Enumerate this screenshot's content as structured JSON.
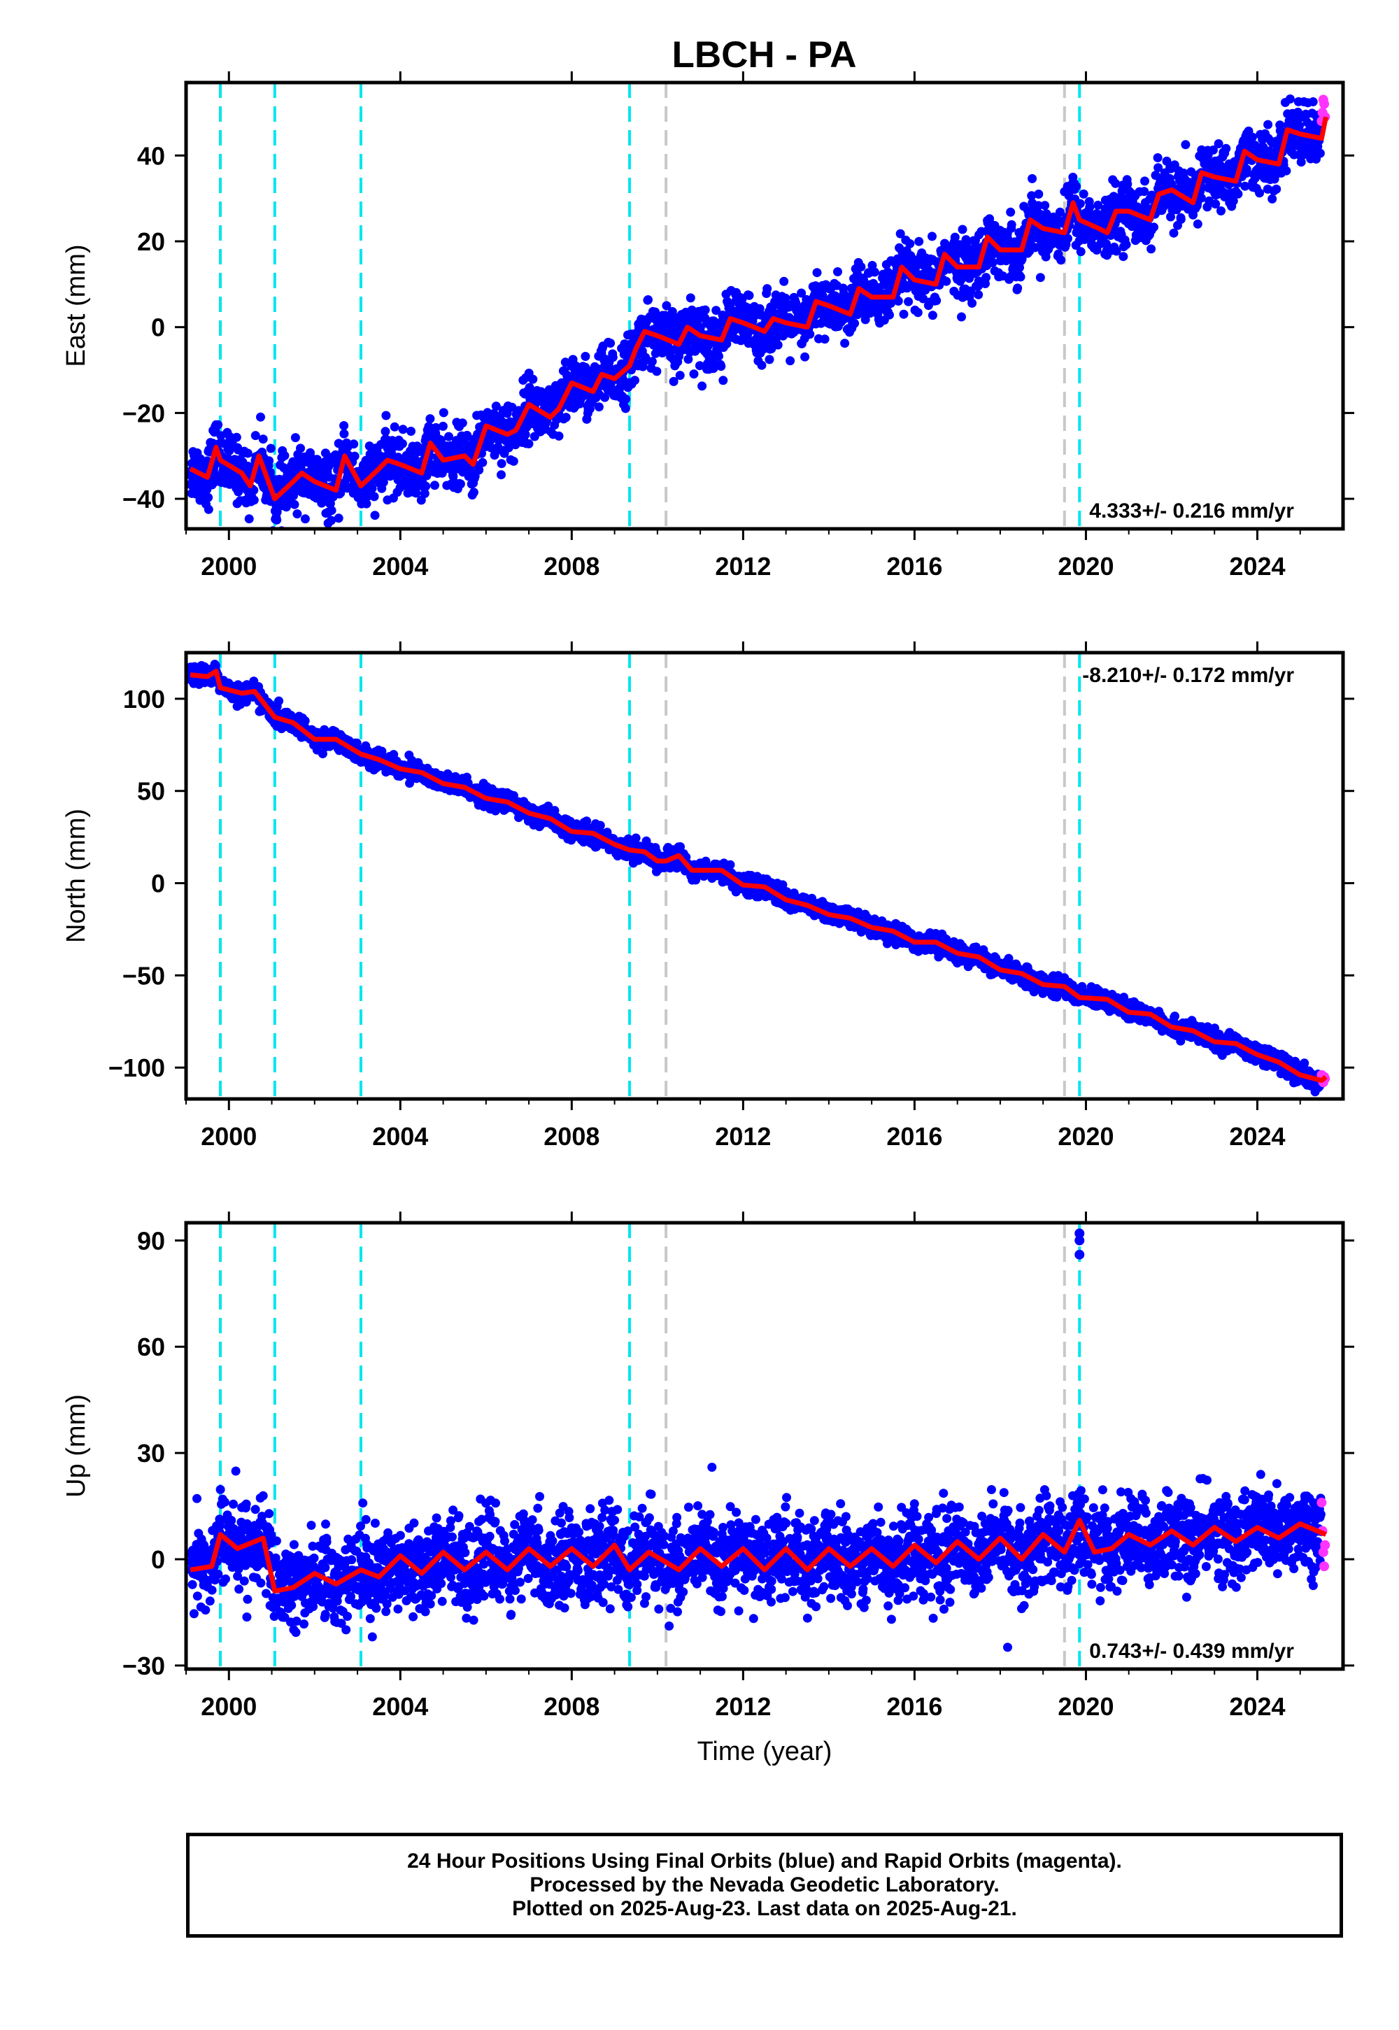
{
  "title": "LBCH - PA",
  "colors": {
    "final_orbits": "#0000ff",
    "rapid_orbits": "#ff33ff",
    "model": "#ff0000",
    "offset_cyan": "#00e5ee",
    "offset_gray": "#c8c8c8"
  },
  "footer": {
    "line1": "24 Hour Positions Using Final Orbits (blue) and Rapid Orbits (magenta).",
    "line2": "Processed by the Nevada Geodetic Laboratory.",
    "line3": "Plotted on 2025-Aug-23. Last data on 2025-Aug-21."
  },
  "chart_data": [
    {
      "type": "scatter",
      "name": "east",
      "xlabel": "",
      "ylabel": "East (mm)",
      "xlim": [
        1999.0,
        2026.0
      ],
      "ylim": [
        -47,
        57
      ],
      "xticks": [
        2000,
        2004,
        2008,
        2012,
        2016,
        2020,
        2024
      ],
      "yticks": [
        -40,
        -20,
        0,
        20,
        40
      ],
      "rate_text": "4.333+/- 0.216 mm/yr",
      "rate_position": "bottom-right",
      "offsets_cyan": [
        1999.8,
        2001.07,
        2003.08,
        2009.35
      ],
      "offsets_gray": [
        2010.2,
        2019.5
      ],
      "offsets_cyan_late": [
        2019.85
      ],
      "model_x": [
        1999.1,
        1999.5,
        1999.7,
        1999.8,
        2000.3,
        2000.5,
        2000.7,
        2001.07,
        2001.5,
        2001.7,
        2002.0,
        2002.5,
        2002.7,
        2003.08,
        2003.5,
        2003.7,
        2004.0,
        2004.5,
        2004.7,
        2005.0,
        2005.5,
        2005.7,
        2006.0,
        2006.5,
        2006.7,
        2007.0,
        2007.5,
        2007.7,
        2008.0,
        2008.5,
        2008.7,
        2009.0,
        2009.35,
        2009.5,
        2009.7,
        2010.0,
        2010.5,
        2010.7,
        2011.0,
        2011.5,
        2011.7,
        2012.0,
        2012.5,
        2012.7,
        2013.0,
        2013.5,
        2013.7,
        2014.0,
        2014.5,
        2014.7,
        2015.0,
        2015.5,
        2015.7,
        2016.0,
        2016.5,
        2016.7,
        2017.0,
        2017.5,
        2017.7,
        2018.0,
        2018.5,
        2018.7,
        2019.0,
        2019.5,
        2019.7,
        2019.85,
        2020.3,
        2020.5,
        2020.7,
        2021.0,
        2021.5,
        2021.7,
        2022.0,
        2022.5,
        2022.7,
        2023.0,
        2023.5,
        2023.7,
        2024.0,
        2024.5,
        2024.7,
        2025.0,
        2025.5,
        2025.6
      ],
      "model_y": [
        -33,
        -35,
        -28,
        -31,
        -34,
        -37,
        -30,
        -40,
        -36,
        -34,
        -36,
        -38,
        -30,
        -37,
        -33,
        -31,
        -32,
        -34,
        -27,
        -31,
        -30,
        -32,
        -23,
        -25,
        -24,
        -18,
        -21,
        -19,
        -13,
        -15,
        -11,
        -12,
        -9,
        -5,
        -1,
        -2,
        -4,
        0,
        -2,
        -3,
        2,
        1,
        -1,
        2,
        1,
        0,
        6,
        5,
        3,
        9,
        7,
        7,
        14,
        11,
        10,
        17,
        14,
        14,
        21,
        18,
        18,
        25,
        23,
        22,
        29,
        25,
        23,
        22,
        27,
        27,
        25,
        31,
        32,
        29,
        36,
        35,
        34,
        41,
        39,
        38,
        46,
        45,
        44,
        49
      ],
      "scatter_noise": 3.5,
      "rapid_y": [
        48,
        50,
        53,
        52,
        49
      ]
    },
    {
      "type": "scatter",
      "name": "north",
      "xlabel": "",
      "ylabel": "North (mm)",
      "xlim": [
        1999.0,
        2026.0
      ],
      "ylim": [
        -117,
        125
      ],
      "xticks": [
        2000,
        2004,
        2008,
        2012,
        2016,
        2020,
        2024
      ],
      "yticks": [
        -100,
        -50,
        0,
        50,
        100
      ],
      "rate_text": "-8.210+/- 0.172 mm/yr",
      "rate_position": "top-right",
      "offsets_cyan": [
        1999.8,
        2001.07,
        2003.08,
        2009.35
      ],
      "offsets_gray": [
        2010.2,
        2019.5
      ],
      "offsets_cyan_late": [
        2019.85
      ],
      "model_x": [
        1999.1,
        1999.5,
        1999.7,
        1999.8,
        2000.3,
        2000.6,
        2001.07,
        2001.5,
        2002.0,
        2002.5,
        2003.08,
        2003.5,
        2004.0,
        2004.5,
        2005.0,
        2005.5,
        2006.0,
        2006.5,
        2007.0,
        2007.5,
        2008.0,
        2008.5,
        2009.0,
        2009.35,
        2009.7,
        2010.0,
        2010.2,
        2010.5,
        2010.8,
        2011.5,
        2012.0,
        2012.5,
        2013.0,
        2013.5,
        2014.0,
        2014.5,
        2015.0,
        2015.5,
        2016.0,
        2016.5,
        2017.0,
        2017.5,
        2018.0,
        2018.5,
        2019.0,
        2019.5,
        2019.85,
        2020.5,
        2021.0,
        2021.5,
        2022.0,
        2022.5,
        2023.0,
        2023.5,
        2024.0,
        2024.5,
        2025.0,
        2025.5,
        2025.6
      ],
      "model_y": [
        113,
        112,
        115,
        106,
        103,
        104,
        90,
        87,
        78,
        78,
        70,
        67,
        62,
        60,
        54,
        52,
        46,
        44,
        38,
        35,
        28,
        27,
        21,
        18,
        17,
        12,
        12,
        15,
        7,
        7,
        -1,
        -2,
        -9,
        -12,
        -17,
        -19,
        -24,
        -26,
        -32,
        -32,
        -38,
        -40,
        -47,
        -49,
        -55,
        -56,
        -62,
        -63,
        -70,
        -71,
        -78,
        -80,
        -86,
        -87,
        -93,
        -97,
        -104,
        -107,
        -105
      ],
      "scatter_noise": 2.5,
      "rapid_y": [
        -104,
        -107,
        -108,
        -105,
        -106
      ]
    },
    {
      "type": "scatter",
      "name": "up",
      "xlabel": "Time (year)",
      "ylabel": "Up (mm)",
      "xlim": [
        1999.0,
        2026.0
      ],
      "ylim": [
        -31,
        95
      ],
      "xticks": [
        2000,
        2004,
        2008,
        2012,
        2016,
        2020,
        2024
      ],
      "yticks": [
        -30,
        0,
        30,
        60,
        90
      ],
      "rate_text": "0.743+/- 0.439 mm/yr",
      "rate_position": "bottom-right",
      "offsets_cyan": [
        1999.8,
        2001.07,
        2003.08,
        2009.35
      ],
      "offsets_gray": [
        2010.2,
        2019.5
      ],
      "offsets_cyan_late": [
        2019.85
      ],
      "model_x": [
        1999.1,
        1999.6,
        1999.8,
        2000.2,
        2000.8,
        2001.07,
        2001.5,
        2002.0,
        2002.5,
        2003.08,
        2003.5,
        2004.0,
        2004.5,
        2005.0,
        2005.5,
        2006.0,
        2006.5,
        2007.0,
        2007.5,
        2008.0,
        2008.5,
        2009.0,
        2009.35,
        2009.8,
        2010.5,
        2011.0,
        2011.5,
        2012.0,
        2012.5,
        2013.0,
        2013.5,
        2014.0,
        2014.5,
        2015.0,
        2015.5,
        2016.0,
        2016.5,
        2017.0,
        2017.5,
        2018.0,
        2018.5,
        2019.0,
        2019.5,
        2019.85,
        2020.2,
        2020.6,
        2021.0,
        2021.5,
        2022.0,
        2022.5,
        2023.0,
        2023.5,
        2024.0,
        2024.5,
        2025.0,
        2025.6
      ],
      "model_y": [
        -3,
        -2,
        7,
        3,
        6,
        -9,
        -8,
        -4,
        -7,
        -3,
        -5,
        1,
        -4,
        2,
        -3,
        2,
        -3,
        3,
        -2,
        3,
        -2,
        4,
        -3,
        2,
        -3,
        3,
        -2,
        3,
        -3,
        3,
        -3,
        3,
        -2,
        3,
        -2,
        4,
        -1,
        5,
        0,
        6,
        0,
        7,
        2,
        11,
        2,
        3,
        7,
        4,
        8,
        4,
        9,
        5,
        9,
        6,
        10,
        7
      ],
      "scatter_noise": 6.0,
      "outliers_x": [
        2019.85,
        2019.85,
        2019.85
      ],
      "outliers_y": [
        92,
        90,
        86
      ],
      "rapid_y": [
        16,
        8,
        2,
        -2,
        4
      ]
    }
  ]
}
